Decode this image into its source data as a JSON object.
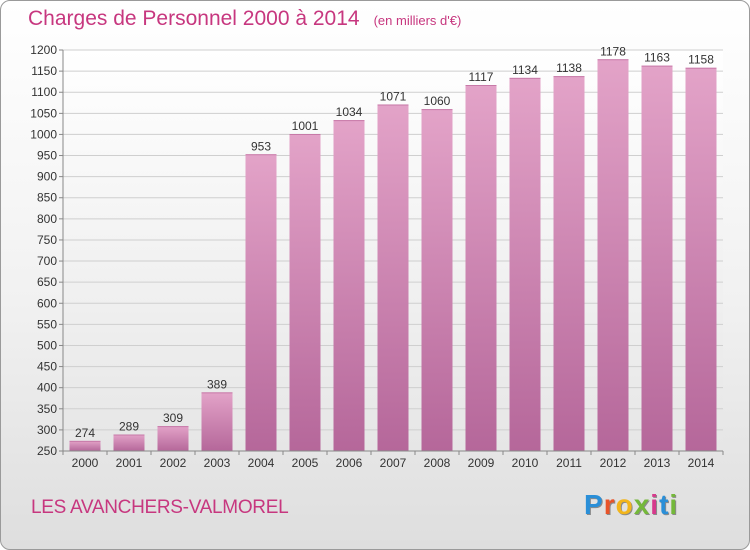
{
  "header": {
    "title": "Charges de Personnel 2000 à 2014",
    "unit": "(en milliers d'€)"
  },
  "footer": {
    "commune": "LES AVANCHERS-VALMOREL",
    "logo_letters": [
      "P",
      "r",
      "o",
      "x",
      "i",
      "t",
      "i"
    ],
    "logo_colors": [
      "#2a8fd8",
      "#e8542a",
      "#f2b51c",
      "#74b83a",
      "#d63a8c",
      "#2a8fd8",
      "#74b83a"
    ]
  },
  "chart_data": {
    "type": "bar",
    "categories": [
      "2000",
      "2001",
      "2002",
      "2003",
      "2004",
      "2005",
      "2006",
      "2007",
      "2008",
      "2009",
      "2010",
      "2011",
      "2012",
      "2013",
      "2014"
    ],
    "values": [
      274,
      289,
      309,
      389,
      953,
      1001,
      1034,
      1071,
      1060,
      1117,
      1134,
      1138,
      1178,
      1163,
      1158
    ],
    "ylim": [
      250,
      1200
    ],
    "yticks": [
      250,
      300,
      350,
      400,
      450,
      500,
      550,
      600,
      650,
      700,
      750,
      800,
      850,
      900,
      950,
      1000,
      1050,
      1100,
      1150,
      1200
    ],
    "grid": true,
    "bar_color": "#d98ab6",
    "title": "Charges de Personnel 2000 à 2014",
    "xlabel": "",
    "ylabel": ""
  }
}
